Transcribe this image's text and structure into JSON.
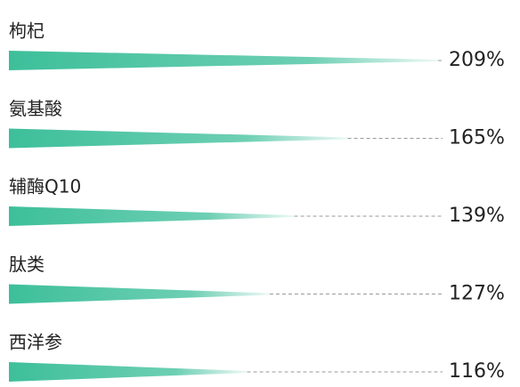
{
  "chart_data": {
    "type": "bar",
    "categories": [
      "枸杞",
      "氨基酸",
      "辅酶Q10",
      "肽类",
      "西洋参"
    ],
    "values": [
      209,
      165,
      139,
      127,
      116
    ],
    "value_labels": [
      "209%",
      "165%",
      "139%",
      "127%",
      "116%"
    ],
    "color": "#3dbf9a"
  }
}
